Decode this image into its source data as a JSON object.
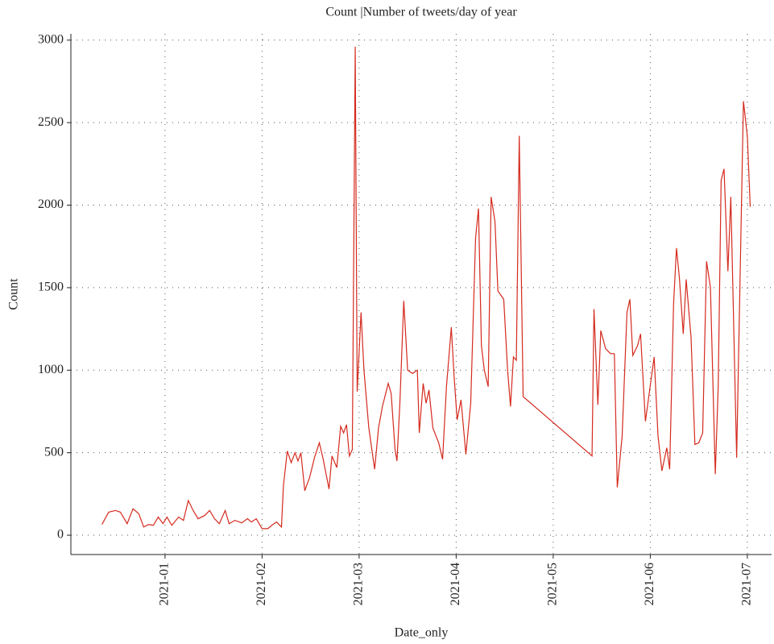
{
  "chart_data": {
    "type": "line",
    "title": "Count |Number of tweets/day of year",
    "xlabel": "Date_only",
    "ylabel": "Count",
    "xlim": [
      0.03,
      7.25
    ],
    "xticks": [
      {
        "value": 1,
        "label": "2021-01"
      },
      {
        "value": 2,
        "label": "2021-02"
      },
      {
        "value": 3,
        "label": "2021-03"
      },
      {
        "value": 4,
        "label": "2021-04"
      },
      {
        "value": 5,
        "label": "2021-05"
      },
      {
        "value": 6,
        "label": "2021-06"
      },
      {
        "value": 7,
        "label": "2021-07"
      }
    ],
    "ylim": [
      -117,
      3038
    ],
    "yticks": [
      0,
      500,
      1000,
      1500,
      2000,
      2500,
      3000
    ],
    "grid": true,
    "series": [
      {
        "name": "Count",
        "color": "#d42a1e",
        "x": [
          0.35,
          0.42,
          0.49,
          0.54,
          0.61,
          0.67,
          0.73,
          0.78,
          0.83,
          0.88,
          0.93,
          0.98,
          1.02,
          1.07,
          1.14,
          1.19,
          1.24,
          1.29,
          1.34,
          1.41,
          1.46,
          1.51,
          1.56,
          1.62,
          1.66,
          1.72,
          1.79,
          1.85,
          1.89,
          1.94,
          2.0,
          2.06,
          2.1,
          2.15,
          2.2,
          2.22,
          2.26,
          2.3,
          2.34,
          2.37,
          2.4,
          2.44,
          2.49,
          2.54,
          2.59,
          2.63,
          2.69,
          2.72,
          2.77,
          2.81,
          2.84,
          2.87,
          2.9,
          2.93,
          2.96,
          2.98,
          3.02,
          3.05,
          3.1,
          3.16,
          3.2,
          3.24,
          3.3,
          3.33,
          3.37,
          3.39,
          3.42,
          3.46,
          3.5,
          3.55,
          3.6,
          3.62,
          3.66,
          3.69,
          3.72,
          3.76,
          3.82,
          3.86,
          3.9,
          3.95,
          3.98,
          4.01,
          4.05,
          4.1,
          4.15,
          4.2,
          4.23,
          4.26,
          4.29,
          4.33,
          4.36,
          4.4,
          4.43,
          4.49,
          4.53,
          4.56,
          4.59,
          4.62,
          4.65,
          4.69,
          5.4,
          5.42,
          5.46,
          5.49,
          5.54,
          5.59,
          5.63,
          5.66,
          5.71,
          5.76,
          5.79,
          5.82,
          5.87,
          5.9,
          5.95,
          6.04,
          6.08,
          6.12,
          6.17,
          6.2,
          6.24,
          6.27,
          6.3,
          6.34,
          6.37,
          6.42,
          6.46,
          6.5,
          6.54,
          6.58,
          6.62,
          6.67,
          6.7,
          6.73,
          6.76,
          6.8,
          6.83,
          6.89,
          6.93,
          6.96,
          7.0,
          7.03
        ],
        "values": [
          65,
          140,
          150,
          140,
          70,
          160,
          130,
          50,
          65,
          60,
          110,
          70,
          110,
          60,
          110,
          90,
          210,
          150,
          100,
          120,
          150,
          100,
          70,
          150,
          70,
          90,
          75,
          100,
          80,
          100,
          40,
          40,
          60,
          80,
          50,
          300,
          510,
          440,
          500,
          450,
          500,
          270,
          350,
          470,
          560,
          460,
          280,
          480,
          410,
          660,
          620,
          670,
          480,
          520,
          2960,
          870,
          1350,
          1000,
          650,
          400,
          650,
          780,
          920,
          860,
          520,
          450,
          800,
          1420,
          1000,
          980,
          1000,
          620,
          920,
          800,
          880,
          650,
          560,
          460,
          900,
          1260,
          950,
          700,
          820,
          490,
          800,
          1800,
          1980,
          1150,
          1000,
          900,
          2050,
          1900,
          1480,
          1430,
          1000,
          780,
          1080,
          1060,
          2420,
          840,
          480,
          1370,
          790,
          1240,
          1130,
          1100,
          1100,
          290,
          600,
          1350,
          1430,
          1090,
          1150,
          1220,
          690,
          1080,
          600,
          390,
          530,
          400,
          1400,
          1740,
          1560,
          1220,
          1550,
          1200,
          550,
          560,
          620,
          1660,
          1500,
          370,
          900,
          2150,
          2220,
          1600,
          2050,
          470,
          1700,
          2630,
          2420,
          1990
        ]
      }
    ]
  }
}
